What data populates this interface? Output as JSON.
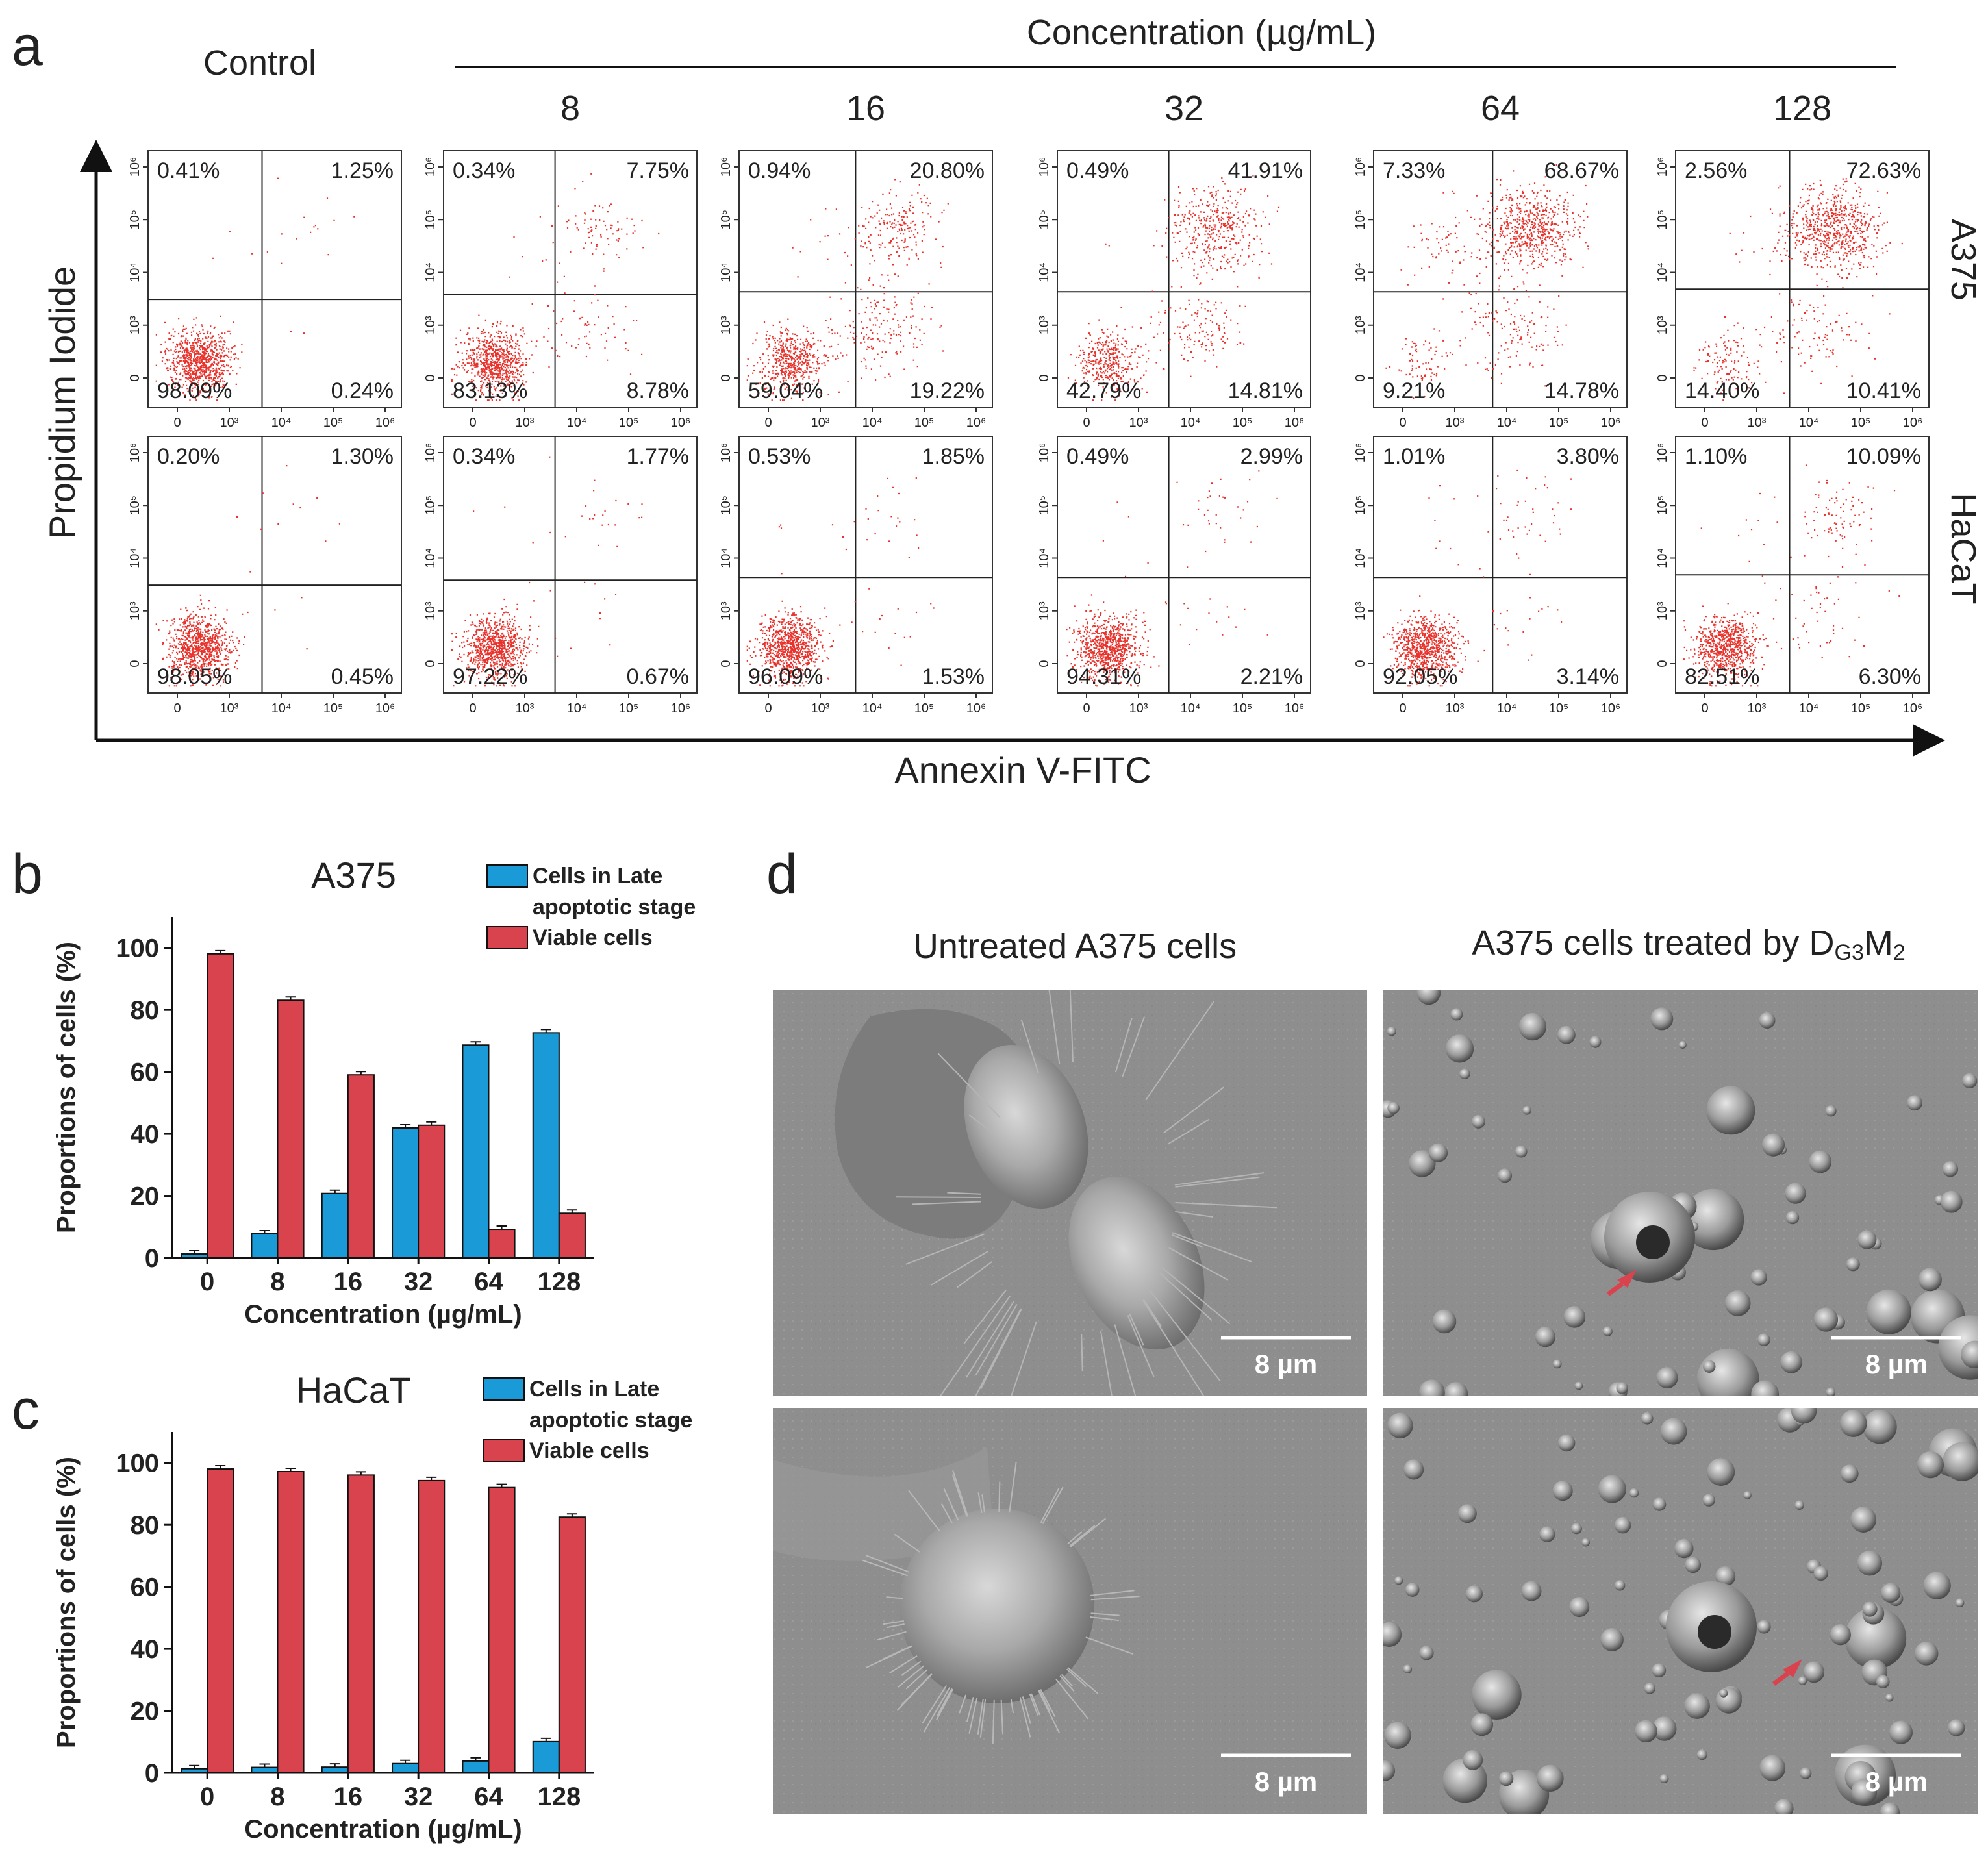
{
  "panel_labels": {
    "a": "a",
    "b": "b",
    "c": "c",
    "d": "d"
  },
  "panel_a": {
    "control_label": "Control",
    "concentration_header": "Concentration (µg/mL)",
    "concentrations": [
      "8",
      "16",
      "32",
      "64",
      "128"
    ],
    "y_title": "Propidium Iodide",
    "x_title": "Annexin V-FITC",
    "row_labels": [
      "A375",
      "HaCaT"
    ],
    "y_ticks": [
      "0",
      "10³",
      "10⁴",
      "10⁵",
      "10⁶"
    ],
    "x_ticks": [
      "0",
      "10³",
      "10⁴",
      "10⁵",
      "10⁶"
    ],
    "dot_color": "#e8322b",
    "plots": [
      [
        {
          "ul": "0.41%",
          "ur": "1.25%",
          "ll": "98.09%",
          "lr": "0.24%"
        },
        {
          "ul": "0.34%",
          "ur": "7.75%",
          "ll": "83.13%",
          "lr": "8.78%"
        },
        {
          "ul": "0.94%",
          "ur": "20.80%",
          "ll": "59.04%",
          "lr": "19.22%"
        },
        {
          "ul": "0.49%",
          "ur": "41.91%",
          "ll": "42.79%",
          "lr": "14.81%"
        },
        {
          "ul": "7.33%",
          "ur": "68.67%",
          "ll": "9.21%",
          "lr": "14.78%"
        },
        {
          "ul": "2.56%",
          "ur": "72.63%",
          "ll": "14.40%",
          "lr": "10.41%"
        }
      ],
      [
        {
          "ul": "0.20%",
          "ur": "1.30%",
          "ll": "98.05%",
          "lr": "0.45%"
        },
        {
          "ul": "0.34%",
          "ur": "1.77%",
          "ll": "97.22%",
          "lr": "0.67%"
        },
        {
          "ul": "0.53%",
          "ur": "1.85%",
          "ll": "96.09%",
          "lr": "1.53%"
        },
        {
          "ul": "0.49%",
          "ur": "2.99%",
          "ll": "94.31%",
          "lr": "2.21%"
        },
        {
          "ul": "1.01%",
          "ur": "3.80%",
          "ll": "92.05%",
          "lr": "3.14%"
        },
        {
          "ul": "1.10%",
          "ur": "10.09%",
          "ll": "82.51%",
          "lr": "6.30%"
        }
      ]
    ]
  },
  "chart_data": [
    {
      "type": "bar",
      "title": "A375",
      "categories": [
        "0",
        "8",
        "16",
        "32",
        "64",
        "128"
      ],
      "series": [
        {
          "name": "Cells in Late apoptotic stage",
          "color": "#1a9ad6",
          "values": [
            1.25,
            7.75,
            20.8,
            41.91,
            68.67,
            72.63
          ]
        },
        {
          "name": "Viable cells",
          "color": "#d9434e",
          "values": [
            98.09,
            83.13,
            59.04,
            42.79,
            9.21,
            14.4
          ]
        }
      ],
      "xlabel": "Concentration (µg/mL)",
      "ylabel": "Proportions of cells (%)",
      "ylim": [
        0,
        110
      ],
      "yticks": [
        0,
        20,
        40,
        60,
        80,
        100
      ],
      "legend_position": "top-right",
      "legend_lines": [
        [
          "Cells in Late",
          "apoptotic stage"
        ],
        [
          "Viable cells"
        ]
      ],
      "grid": false
    },
    {
      "type": "bar",
      "title": "HaCaT",
      "categories": [
        "0",
        "8",
        "16",
        "32",
        "64",
        "128"
      ],
      "series": [
        {
          "name": "Cells in Late apoptotic stage",
          "color": "#1a9ad6",
          "values": [
            1.3,
            1.77,
            1.85,
            2.99,
            3.8,
            10.09
          ]
        },
        {
          "name": "Viable cells",
          "color": "#d9434e",
          "values": [
            98.05,
            97.22,
            96.09,
            94.31,
            92.05,
            82.51
          ]
        }
      ],
      "xlabel": "Concentration (µg/mL)",
      "ylabel": "Proportions of cells (%)",
      "ylim": [
        0,
        110
      ],
      "yticks": [
        0,
        20,
        40,
        60,
        80,
        100
      ],
      "legend_position": "top-right",
      "legend_lines": [
        [
          "Cells in Late",
          "apoptotic stage"
        ],
        [
          "Viable cells"
        ]
      ],
      "grid": false
    }
  ],
  "panel_d": {
    "titles": [
      "Untreated A375 cells",
      "A375 cells treated by D"
    ],
    "title_sub_1": "G3",
    "title_main_2": "M",
    "title_sub_2": "2",
    "scale_bar": "8 µm",
    "arrow_color": "#d9434e"
  }
}
